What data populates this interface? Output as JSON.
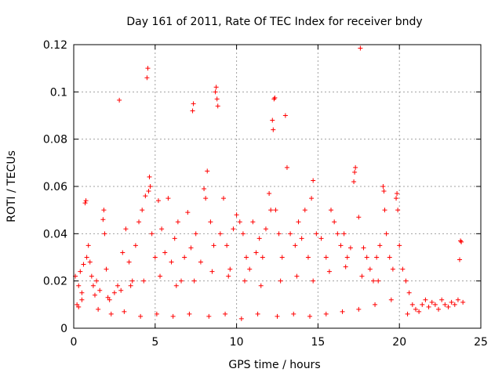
{
  "chart_data": {
    "type": "scatter",
    "title": "Day 161 of 2011, Rate Of TEC Index for receiver bndy",
    "xlabel": "GPS time / hours",
    "ylabel": "ROTI / TECUs",
    "xlim": [
      0,
      25
    ],
    "ylim": [
      0,
      0.12
    ],
    "x_ticks": [
      "0",
      "5",
      "10",
      "15",
      "20",
      "25"
    ],
    "y_ticks": [
      "0",
      "0.02",
      "0.04",
      "0.06",
      "0.08",
      "0.1",
      "0.12"
    ],
    "grid": true,
    "legend": "none",
    "marker": "+",
    "color": "#ff0000",
    "series": [
      {
        "points": [
          [
            0.1,
            0.022
          ],
          [
            0.2,
            0.01
          ],
          [
            0.3,
            0.018
          ],
          [
            0.4,
            0.024
          ],
          [
            0.5,
            0.012
          ],
          [
            0.6,
            0.027
          ],
          [
            0.7,
            0.053
          ],
          [
            0.75,
            0.054
          ],
          [
            0.8,
            0.03
          ],
          [
            0.9,
            0.035
          ],
          [
            1.0,
            0.028
          ],
          [
            1.1,
            0.022
          ],
          [
            1.2,
            0.018
          ],
          [
            1.4,
            0.02
          ],
          [
            1.6,
            0.016
          ],
          [
            1.8,
            0.046
          ],
          [
            1.85,
            0.05
          ],
          [
            1.9,
            0.04
          ],
          [
            2.0,
            0.025
          ],
          [
            2.2,
            0.012
          ],
          [
            2.5,
            0.015
          ],
          [
            2.7,
            0.018
          ],
          [
            2.8,
            0.0965
          ],
          [
            3.0,
            0.032
          ],
          [
            3.2,
            0.042
          ],
          [
            3.4,
            0.028
          ],
          [
            3.6,
            0.02
          ],
          [
            3.8,
            0.035
          ],
          [
            4.0,
            0.045
          ],
          [
            4.2,
            0.05
          ],
          [
            4.4,
            0.056
          ],
          [
            4.5,
            0.106
          ],
          [
            4.55,
            0.11
          ],
          [
            4.6,
            0.058
          ],
          [
            4.65,
            0.064
          ],
          [
            4.7,
            0.06
          ],
          [
            4.8,
            0.04
          ],
          [
            5.0,
            0.03
          ],
          [
            5.2,
            0.054
          ],
          [
            5.4,
            0.042
          ],
          [
            5.6,
            0.032
          ],
          [
            5.8,
            0.055
          ],
          [
            6.0,
            0.028
          ],
          [
            6.2,
            0.038
          ],
          [
            6.4,
            0.045
          ],
          [
            6.6,
            0.02
          ],
          [
            6.8,
            0.03
          ],
          [
            7.0,
            0.049
          ],
          [
            7.2,
            0.034
          ],
          [
            7.3,
            0.092
          ],
          [
            7.35,
            0.095
          ],
          [
            7.5,
            0.04
          ],
          [
            7.8,
            0.028
          ],
          [
            8.0,
            0.059
          ],
          [
            8.1,
            0.055
          ],
          [
            8.2,
            0.0665
          ],
          [
            8.4,
            0.045
          ],
          [
            8.6,
            0.035
          ],
          [
            8.7,
            0.1
          ],
          [
            8.75,
            0.102
          ],
          [
            8.8,
            0.097
          ],
          [
            8.85,
            0.094
          ],
          [
            9.0,
            0.04
          ],
          [
            9.2,
            0.055
          ],
          [
            9.4,
            0.035
          ],
          [
            9.6,
            0.025
          ],
          [
            9.8,
            0.042
          ],
          [
            10.0,
            0.048
          ],
          [
            10.2,
            0.045
          ],
          [
            10.4,
            0.04
          ],
          [
            10.6,
            0.03
          ],
          [
            10.8,
            0.025
          ],
          [
            11.0,
            0.045
          ],
          [
            11.2,
            0.032
          ],
          [
            11.4,
            0.038
          ],
          [
            11.6,
            0.03
          ],
          [
            11.8,
            0.042
          ],
          [
            12.0,
            0.057
          ],
          [
            12.1,
            0.05
          ],
          [
            12.2,
            0.088
          ],
          [
            12.25,
            0.084
          ],
          [
            12.3,
            0.097
          ],
          [
            12.35,
            0.0975
          ],
          [
            12.4,
            0.05
          ],
          [
            12.6,
            0.04
          ],
          [
            12.8,
            0.03
          ],
          [
            13.0,
            0.09
          ],
          [
            13.1,
            0.068
          ],
          [
            13.3,
            0.04
          ],
          [
            13.6,
            0.035
          ],
          [
            13.8,
            0.045
          ],
          [
            14.0,
            0.038
          ],
          [
            14.2,
            0.05
          ],
          [
            14.4,
            0.03
          ],
          [
            14.6,
            0.055
          ],
          [
            14.7,
            0.0625
          ],
          [
            14.9,
            0.04
          ],
          [
            15.2,
            0.038
          ],
          [
            15.5,
            0.03
          ],
          [
            15.8,
            0.05
          ],
          [
            16.0,
            0.045
          ],
          [
            16.2,
            0.04
          ],
          [
            16.4,
            0.035
          ],
          [
            16.6,
            0.04
          ],
          [
            16.8,
            0.03
          ],
          [
            17.0,
            0.034
          ],
          [
            17.2,
            0.062
          ],
          [
            17.25,
            0.066
          ],
          [
            17.3,
            0.068
          ],
          [
            17.5,
            0.047
          ],
          [
            17.6,
            0.1185
          ],
          [
            17.8,
            0.034
          ],
          [
            18.0,
            0.03
          ],
          [
            18.2,
            0.025
          ],
          [
            18.4,
            0.02
          ],
          [
            18.6,
            0.03
          ],
          [
            18.8,
            0.035
          ],
          [
            19.0,
            0.06
          ],
          [
            19.05,
            0.058
          ],
          [
            19.1,
            0.05
          ],
          [
            19.2,
            0.04
          ],
          [
            19.4,
            0.03
          ],
          [
            19.6,
            0.025
          ],
          [
            19.8,
            0.055
          ],
          [
            19.85,
            0.057
          ],
          [
            19.9,
            0.05
          ],
          [
            20.0,
            0.035
          ],
          [
            20.2,
            0.025
          ],
          [
            20.4,
            0.02
          ],
          [
            20.6,
            0.015
          ],
          [
            20.8,
            0.01
          ],
          [
            21.0,
            0.008
          ],
          [
            21.2,
            0.007
          ],
          [
            21.4,
            0.01
          ],
          [
            21.6,
            0.012
          ],
          [
            21.8,
            0.009
          ],
          [
            22.0,
            0.011
          ],
          [
            22.2,
            0.01
          ],
          [
            22.4,
            0.008
          ],
          [
            22.6,
            0.012
          ],
          [
            22.8,
            0.01
          ],
          [
            23.0,
            0.009
          ],
          [
            23.2,
            0.011
          ],
          [
            23.4,
            0.01
          ],
          [
            23.6,
            0.012
          ],
          [
            23.7,
            0.029
          ],
          [
            23.75,
            0.037
          ],
          [
            23.8,
            0.0365
          ],
          [
            23.9,
            0.011
          ],
          [
            0.3,
            0.009
          ],
          [
            1.5,
            0.008
          ],
          [
            2.3,
            0.006
          ],
          [
            3.1,
            0.007
          ],
          [
            4.1,
            0.005
          ],
          [
            5.1,
            0.006
          ],
          [
            6.1,
            0.005
          ],
          [
            7.1,
            0.006
          ],
          [
            8.3,
            0.005
          ],
          [
            9.3,
            0.006
          ],
          [
            10.3,
            0.004
          ],
          [
            11.3,
            0.006
          ],
          [
            12.5,
            0.005
          ],
          [
            13.5,
            0.006
          ],
          [
            14.5,
            0.005
          ],
          [
            15.5,
            0.006
          ],
          [
            16.5,
            0.007
          ],
          [
            17.5,
            0.008
          ],
          [
            18.5,
            0.01
          ],
          [
            19.5,
            0.012
          ],
          [
            20.5,
            0.006
          ],
          [
            0.5,
            0.015
          ],
          [
            1.3,
            0.014
          ],
          [
            2.1,
            0.013
          ],
          [
            2.9,
            0.016
          ],
          [
            3.5,
            0.018
          ],
          [
            4.3,
            0.02
          ],
          [
            5.3,
            0.022
          ],
          [
            6.3,
            0.018
          ],
          [
            7.4,
            0.02
          ],
          [
            8.5,
            0.024
          ],
          [
            9.5,
            0.022
          ],
          [
            10.5,
            0.02
          ],
          [
            11.5,
            0.018
          ],
          [
            12.7,
            0.02
          ],
          [
            13.7,
            0.022
          ],
          [
            14.7,
            0.02
          ],
          [
            15.7,
            0.024
          ],
          [
            16.7,
            0.026
          ],
          [
            17.7,
            0.022
          ],
          [
            18.7,
            0.02
          ]
        ]
      }
    ]
  }
}
